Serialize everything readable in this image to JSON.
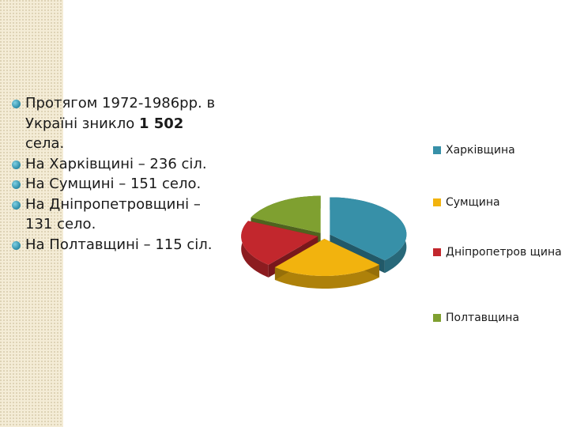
{
  "bullets": [
    {
      "text": "Протягом 1972-1986рр. в Україні зникло ",
      "bold": "1 502",
      "after": " села."
    },
    {
      "text": "На Харківщині – 236 сіл.",
      "bold": "",
      "after": ""
    },
    {
      "text": "На Сумщині – 151 село.",
      "bold": "",
      "after": ""
    },
    {
      "text": "На Дніпропетровщині – 131 село.",
      "bold": "",
      "after": ""
    },
    {
      "text": "На Полтавщині – 115 сіл.",
      "bold": "",
      "after": ""
    }
  ],
  "colors": {
    "Харківщина": "#3790a8",
    "Сумщина": "#f2b30e",
    "Дніпропетровщина": "#c2272d",
    "Полтавщина": "#7fa030"
  },
  "chart_data": {
    "type": "pie",
    "style": "3d-exploded",
    "categories": [
      "Харківщина",
      "Сумщина",
      "Дніпропетровщина",
      "Полтавщина"
    ],
    "legend_labels": [
      "Харківщина",
      "Сумщина",
      "Дніпропетров щина",
      "Полтавщина"
    ],
    "values": [
      236,
      151,
      131,
      115
    ],
    "legend_position": "right"
  }
}
